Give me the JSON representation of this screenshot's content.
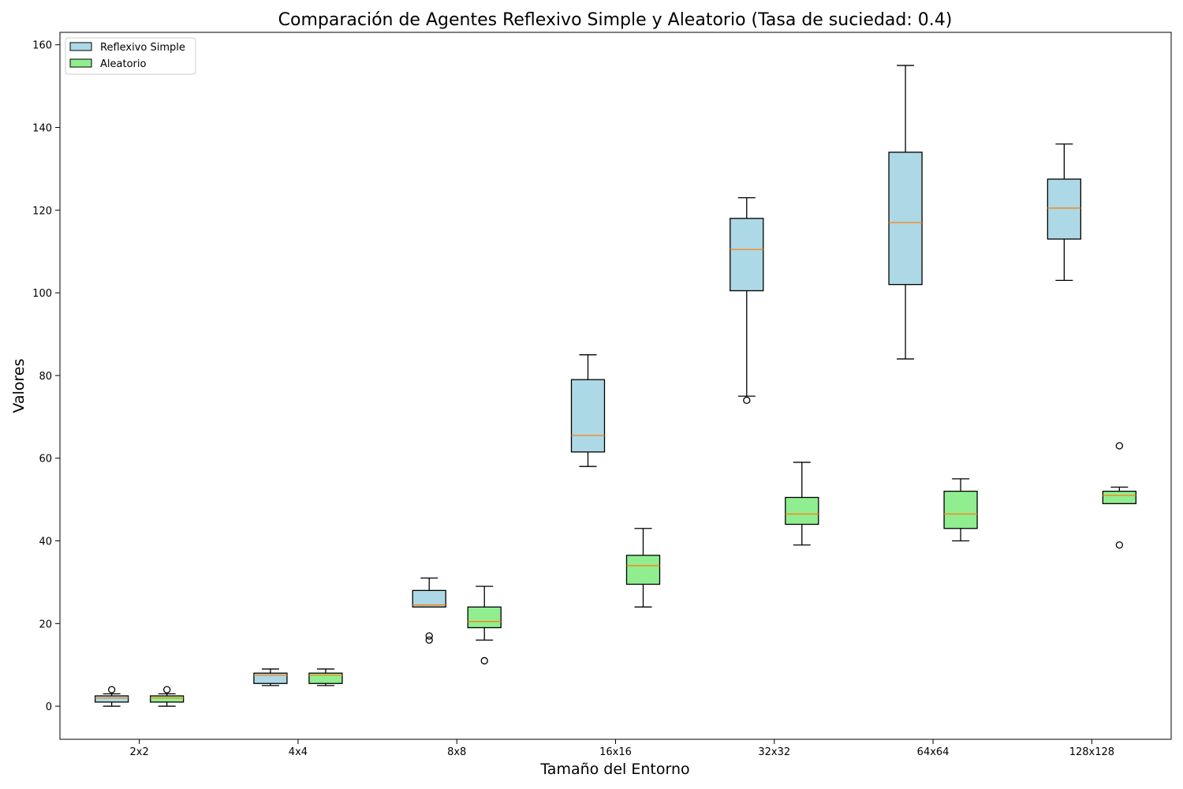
{
  "chart_data": {
    "type": "boxplot",
    "title": "Comparación de Agentes Reflexivo Simple y Aleatorio (Tasa de suciedad: 0.4)",
    "xlabel": "Tamaño del Entorno",
    "ylabel": "Valores",
    "categories": [
      "2x2",
      "4x4",
      "8x8",
      "16x16",
      "32x32",
      "64x64",
      "128x128"
    ],
    "ylim": [
      -8,
      163
    ],
    "yticks": [
      0,
      20,
      40,
      60,
      80,
      100,
      120,
      140,
      160
    ],
    "grid": false,
    "legend_position": "top-left",
    "series": [
      {
        "name": "Reflexivo Simple",
        "color": "#add8e6",
        "boxes": [
          {
            "whisker_low": 0,
            "q1": 1,
            "median": 2,
            "q3": 2.5,
            "whisker_high": 3,
            "outliers": [
              4
            ]
          },
          {
            "whisker_low": 5,
            "q1": 5.5,
            "median": 7.5,
            "q3": 8,
            "whisker_high": 9,
            "outliers": []
          },
          {
            "whisker_low": 24,
            "q1": 24,
            "median": 24.5,
            "q3": 28,
            "whisker_high": 31,
            "outliers": [
              16,
              17
            ]
          },
          {
            "whisker_low": 58,
            "q1": 61.5,
            "median": 65.5,
            "q3": 79,
            "whisker_high": 85,
            "outliers": []
          },
          {
            "whisker_low": 75,
            "q1": 100.5,
            "median": 110.5,
            "q3": 118,
            "whisker_high": 123,
            "outliers": [
              74
            ]
          },
          {
            "whisker_low": 84,
            "q1": 102,
            "median": 117,
            "q3": 134,
            "whisker_high": 155,
            "outliers": []
          },
          {
            "whisker_low": 103,
            "q1": 113,
            "median": 120.5,
            "q3": 127.5,
            "whisker_high": 136,
            "outliers": []
          }
        ]
      },
      {
        "name": "Aleatorio",
        "color": "#90ee90",
        "boxes": [
          {
            "whisker_low": 0,
            "q1": 1,
            "median": 2,
            "q3": 2.5,
            "whisker_high": 3,
            "outliers": [
              4
            ]
          },
          {
            "whisker_low": 5,
            "q1": 5.5,
            "median": 7.5,
            "q3": 8,
            "whisker_high": 9,
            "outliers": []
          },
          {
            "whisker_low": 16,
            "q1": 19,
            "median": 20.5,
            "q3": 24,
            "whisker_high": 29,
            "outliers": [
              11
            ]
          },
          {
            "whisker_low": 24,
            "q1": 29.5,
            "median": 34,
            "q3": 36.5,
            "whisker_high": 43,
            "outliers": []
          },
          {
            "whisker_low": 39,
            "q1": 44,
            "median": 46.5,
            "q3": 50.5,
            "whisker_high": 59,
            "outliers": []
          },
          {
            "whisker_low": 40,
            "q1": 43,
            "median": 46.5,
            "q3": 52,
            "whisker_high": 55,
            "outliers": []
          },
          {
            "whisker_low": 49,
            "q1": 49,
            "median": 51,
            "q3": 52,
            "whisker_high": 53,
            "outliers": [
              63,
              39
            ]
          }
        ]
      }
    ],
    "median_color": "#ff7f0e"
  }
}
